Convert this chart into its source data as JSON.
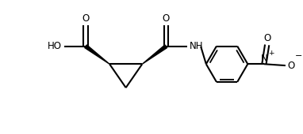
{
  "bg_color": "#ffffff",
  "line_color": "#000000",
  "line_width": 1.5,
  "figsize": [
    3.82,
    1.7
  ],
  "dpi": 100,
  "xlim": [
    0,
    10
  ],
  "ylim": [
    0,
    4.5
  ]
}
